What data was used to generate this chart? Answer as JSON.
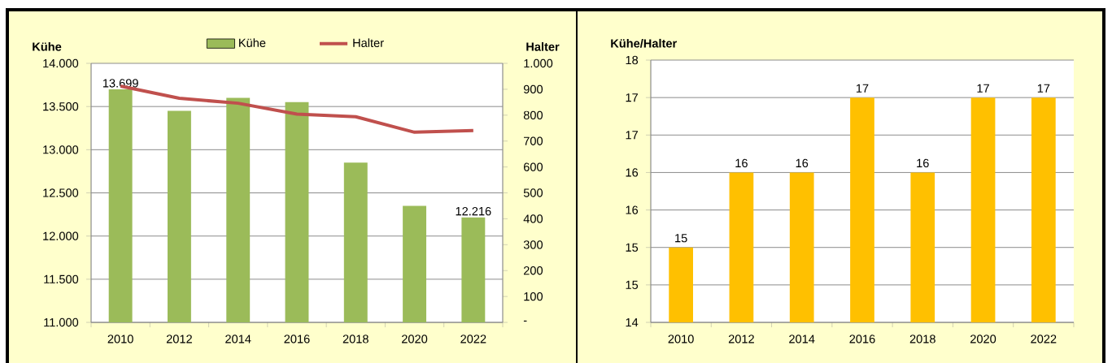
{
  "chart_data": [
    {
      "type": "bar",
      "categories": [
        "2010",
        "2012",
        "2014",
        "2016",
        "2018",
        "2020",
        "2022"
      ],
      "ylabel": "Kühe",
      "y2label": "Halter",
      "series": [
        {
          "name": "Kühe",
          "color": "#9bbb59",
          "values": [
            13699,
            13450,
            13600,
            13550,
            12850,
            12350,
            12216
          ],
          "value_labels": [
            "13.699",
            null,
            null,
            null,
            null,
            null,
            "12.216"
          ]
        },
        {
          "name": "Halter",
          "type": "line",
          "axis": "y2",
          "color": "#c0504d",
          "values": [
            912,
            865,
            846,
            804,
            794,
            734,
            741
          ]
        }
      ],
      "ylim": [
        11000,
        14000
      ],
      "yticks": [
        {
          "value": 11000,
          "label": "11.000"
        },
        {
          "value": 11500,
          "label": "11.500"
        },
        {
          "value": 12000,
          "label": "12.000"
        },
        {
          "value": 12500,
          "label": "12.500"
        },
        {
          "value": 13000,
          "label": "13.000"
        },
        {
          "value": 13500,
          "label": "13.500"
        },
        {
          "value": 14000,
          "label": "14.000"
        }
      ],
      "y2lim": [
        0,
        1000
      ],
      "y2ticks": [
        {
          "value": 0,
          "label": "-"
        },
        100,
        200,
        300,
        400,
        500,
        600,
        700,
        800,
        900,
        {
          "value": 1000,
          "label": "1.000"
        }
      ],
      "grid": "y",
      "legend": "top"
    },
    {
      "type": "bar",
      "categories": [
        "2010",
        "2012",
        "2014",
        "2016",
        "2018",
        "2020",
        "2022"
      ],
      "ylabel": "Kühe/Halter",
      "values": [
        15,
        16,
        16,
        17,
        16,
        17,
        17
      ],
      "color": "#ffc000",
      "data_labels": true,
      "ylim": [
        14,
        17.5
      ],
      "yticks": [
        14,
        {
          "value": 14.5,
          "label": "15"
        },
        15,
        {
          "value": 15.5,
          "label": "16"
        },
        16,
        {
          "value": 16.5,
          "label": "17"
        },
        17,
        {
          "value": 17.5,
          "label": "18"
        }
      ],
      "grid": "y"
    }
  ]
}
